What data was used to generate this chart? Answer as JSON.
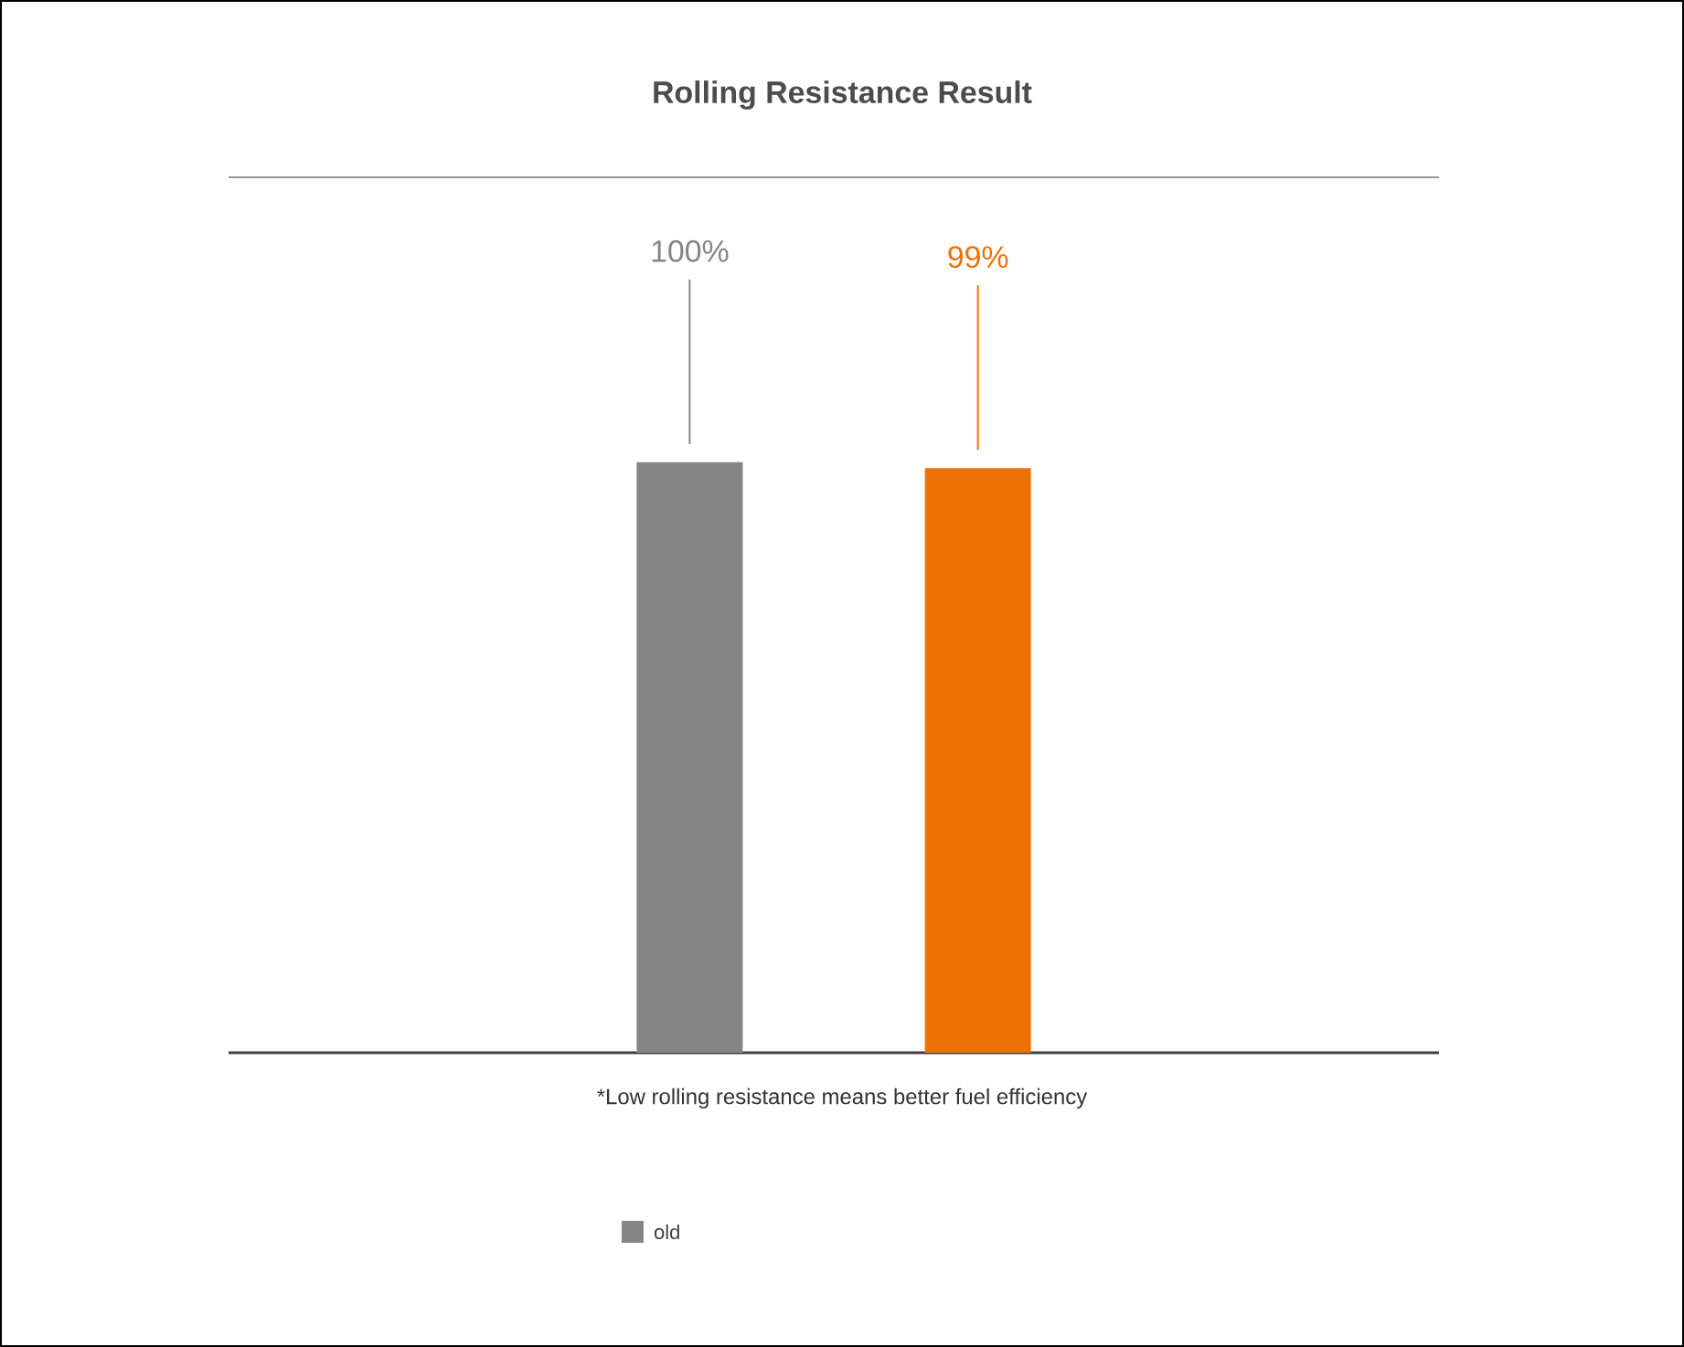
{
  "chart_data": {
    "type": "bar",
    "title": "Rolling Resistance Result",
    "categories": [
      null,
      null
    ],
    "series": [
      {
        "name": "old",
        "color": "#858585",
        "colors": [
          "#858585",
          "#ee7203"
        ],
        "values": [
          100,
          99
        ],
        "value_labels": [
          "100%",
          "99%"
        ]
      }
    ],
    "annotations": [
      "*Low rolling resistance means better fuel efficiency"
    ],
    "legend": "bottom",
    "grid": false
  }
}
